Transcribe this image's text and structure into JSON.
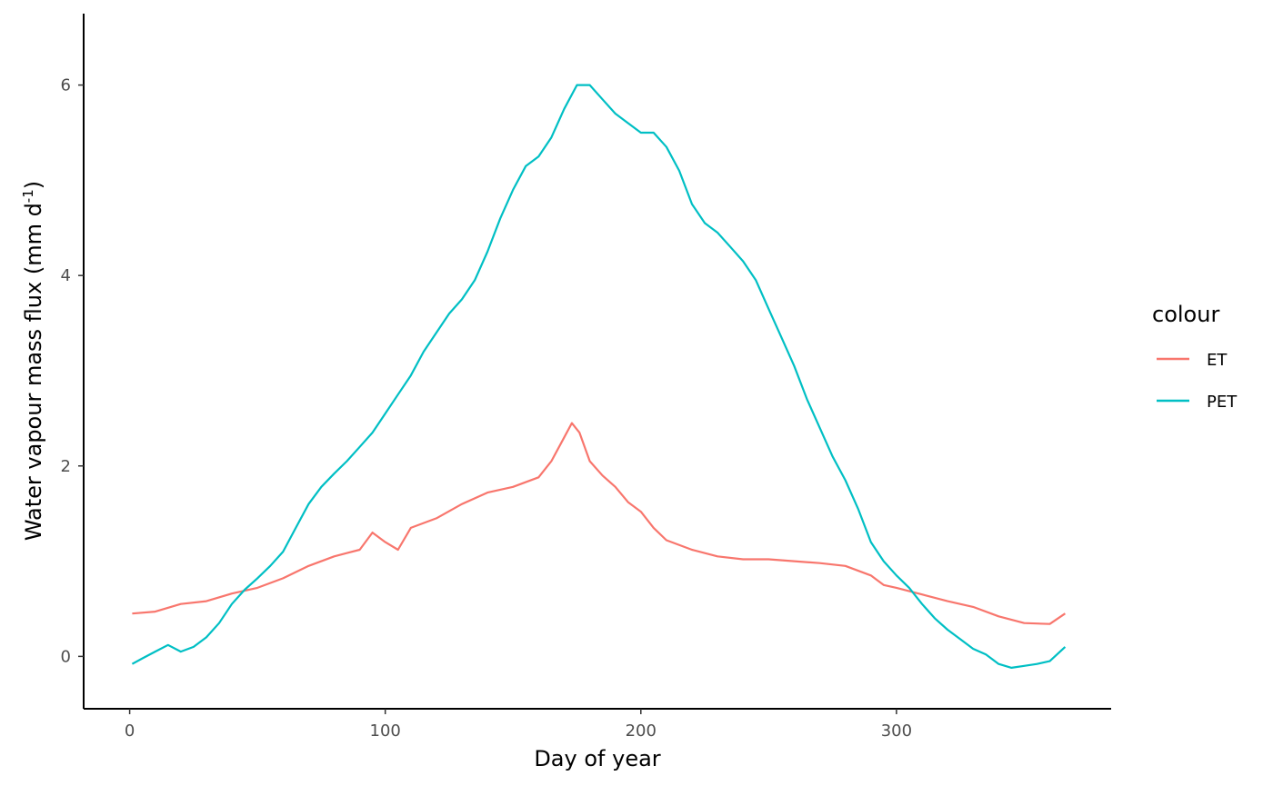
{
  "chart_data": {
    "type": "line",
    "xlabel": "Day of year",
    "ylabel": "Water vapour mass flux (mm d",
    "ylabel_superscript": "-1",
    "ylabel_close": ")",
    "xlim": [
      -18,
      384
    ],
    "ylim": [
      -0.55,
      6.75
    ],
    "x_ticks": [
      0,
      100,
      200,
      300
    ],
    "y_ticks": [
      0,
      2,
      4,
      6
    ],
    "grid": false,
    "legend": {
      "title": "colour",
      "position": "right"
    },
    "series": [
      {
        "name": "ET",
        "color": "#F8766D",
        "x": [
          1,
          10,
          20,
          30,
          40,
          50,
          60,
          70,
          80,
          90,
          95,
          100,
          105,
          110,
          120,
          130,
          140,
          150,
          160,
          165,
          170,
          173,
          176,
          180,
          185,
          190,
          195,
          200,
          205,
          210,
          220,
          230,
          240,
          250,
          260,
          270,
          280,
          290,
          295,
          300,
          310,
          320,
          330,
          340,
          350,
          360,
          366
        ],
        "y": [
          0.45,
          0.47,
          0.55,
          0.58,
          0.66,
          0.72,
          0.82,
          0.95,
          1.05,
          1.12,
          1.3,
          1.2,
          1.12,
          1.35,
          1.45,
          1.6,
          1.72,
          1.78,
          1.88,
          2.05,
          2.3,
          2.45,
          2.35,
          2.05,
          1.9,
          1.78,
          1.62,
          1.52,
          1.35,
          1.22,
          1.12,
          1.05,
          1.02,
          1.02,
          1.0,
          0.98,
          0.95,
          0.85,
          0.75,
          0.72,
          0.65,
          0.58,
          0.52,
          0.42,
          0.35,
          0.34,
          0.45
        ]
      },
      {
        "name": "PET",
        "color": "#00BFC4",
        "x": [
          1,
          5,
          10,
          15,
          20,
          25,
          30,
          35,
          40,
          45,
          50,
          55,
          60,
          65,
          70,
          75,
          80,
          85,
          90,
          95,
          100,
          105,
          110,
          115,
          120,
          125,
          130,
          135,
          140,
          145,
          150,
          155,
          160,
          165,
          170,
          175,
          180,
          185,
          190,
          195,
          200,
          205,
          210,
          215,
          220,
          225,
          230,
          235,
          240,
          245,
          250,
          255,
          260,
          265,
          270,
          275,
          280,
          285,
          290,
          295,
          300,
          305,
          310,
          315,
          320,
          325,
          330,
          335,
          340,
          345,
          350,
          355,
          360,
          366
        ],
        "y": [
          -0.08,
          -0.02,
          0.05,
          0.12,
          0.05,
          0.1,
          0.2,
          0.35,
          0.55,
          0.7,
          0.82,
          0.95,
          1.1,
          1.35,
          1.6,
          1.78,
          1.92,
          2.05,
          2.2,
          2.35,
          2.55,
          2.75,
          2.95,
          3.2,
          3.4,
          3.6,
          3.75,
          3.95,
          4.25,
          4.6,
          4.9,
          5.15,
          5.25,
          5.45,
          5.75,
          6.0,
          6.0,
          5.85,
          5.7,
          5.6,
          5.5,
          5.5,
          5.35,
          5.1,
          4.75,
          4.55,
          4.45,
          4.3,
          4.15,
          3.95,
          3.65,
          3.35,
          3.05,
          2.7,
          2.4,
          2.1,
          1.85,
          1.55,
          1.2,
          1.0,
          0.85,
          0.72,
          0.55,
          0.4,
          0.28,
          0.18,
          0.08,
          0.02,
          -0.08,
          -0.12,
          -0.1,
          -0.08,
          -0.05,
          0.1
        ]
      }
    ]
  }
}
